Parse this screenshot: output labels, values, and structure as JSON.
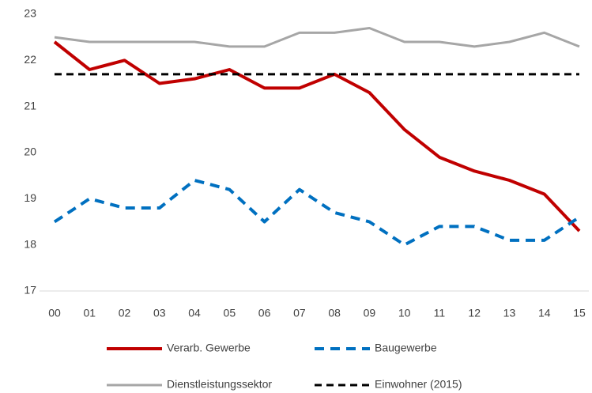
{
  "chart_data": {
    "type": "line",
    "categories": [
      "00",
      "01",
      "02",
      "03",
      "04",
      "05",
      "06",
      "07",
      "08",
      "09",
      "10",
      "11",
      "12",
      "13",
      "14",
      "15"
    ],
    "series": [
      {
        "name": "Verarb. Gewerbe",
        "color": "#c00000",
        "line_width": 4,
        "dashed": false,
        "values": [
          22.4,
          21.8,
          22.0,
          21.5,
          21.6,
          21.8,
          21.4,
          21.4,
          21.7,
          21.3,
          20.5,
          19.9,
          19.6,
          19.4,
          19.1,
          18.3
        ]
      },
      {
        "name": "Baugewerbe",
        "color": "#0070c0",
        "line_width": 4,
        "dashed": true,
        "values": [
          18.5,
          19.0,
          18.8,
          18.8,
          19.4,
          19.2,
          18.5,
          19.2,
          18.7,
          18.5,
          18.0,
          18.4,
          18.4,
          18.1,
          18.1,
          18.6
        ]
      },
      {
        "name": "Dienstleistungssektor",
        "color": "#a6a6a6",
        "line_width": 3,
        "dashed": false,
        "values": [
          22.5,
          22.4,
          22.4,
          22.4,
          22.4,
          22.3,
          22.3,
          22.6,
          22.6,
          22.7,
          22.4,
          22.4,
          22.3,
          22.4,
          22.6,
          22.3
        ]
      },
      {
        "name": "Einwohner (2015)",
        "color": "#000000",
        "line_width": 3,
        "dashed": true,
        "values": [
          21.7,
          21.7,
          21.7,
          21.7,
          21.7,
          21.7,
          21.7,
          21.7,
          21.7,
          21.7,
          21.7,
          21.7,
          21.7,
          21.7,
          21.7,
          21.7
        ]
      }
    ],
    "ylim": [
      17,
      23
    ],
    "yticks": [
      17,
      18,
      19,
      20,
      21,
      22,
      23
    ],
    "grid": false
  }
}
